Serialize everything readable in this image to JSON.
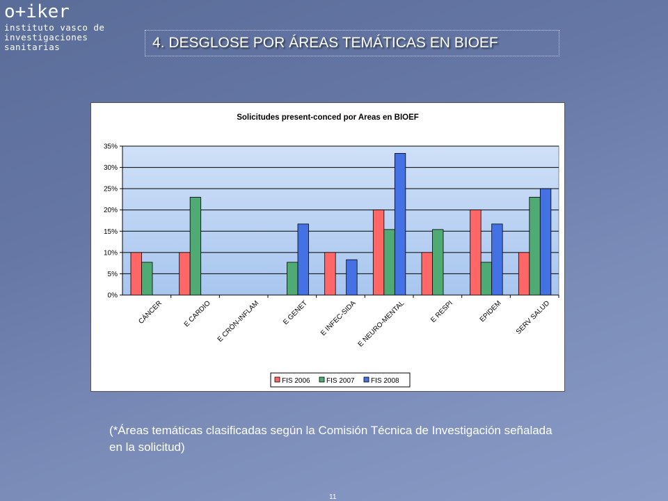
{
  "logo": {
    "main": "o+iker",
    "lines": [
      "instituto vasco de",
      "investigaciones",
      "sanitarias"
    ]
  },
  "slide_title": "4. DESGLOSE POR ÁREAS TEMÁTICAS EN BIOEF",
  "note": "(*Áreas temáticas clasificadas según la Comisión Técnica de Investigación señalada en la solicitud)",
  "page_number": "11",
  "chart_data": {
    "type": "bar",
    "title": "Solicitudes present-conced por Areas en BIOEF",
    "xlabel": "",
    "ylabel": "",
    "ylim": [
      0,
      35
    ],
    "y_ticks": [
      "0%",
      "5%",
      "10%",
      "15%",
      "20%",
      "25%",
      "30%",
      "35%"
    ],
    "grid": true,
    "legend_position": "bottom",
    "categories": [
      "CÁNCER",
      "E CARDIO",
      "E CRÓN-INFLAM",
      "E GENET",
      "E INFEC-SIDA",
      "E NEURO-MENTAL",
      "E RESPI",
      "EPIDEM",
      "SERV SALUD"
    ],
    "series": [
      {
        "name": "FIS 2006",
        "color": "#ff6666",
        "values": [
          10,
          10,
          0,
          0,
          10,
          20,
          10,
          20,
          10
        ]
      },
      {
        "name": "FIS 2007",
        "color": "#4faa73",
        "values": [
          7.7,
          23,
          0,
          7.7,
          0,
          15.4,
          15.4,
          7.7,
          23
        ]
      },
      {
        "name": "FIS 2008",
        "color": "#4472e4",
        "values": [
          0,
          0,
          0,
          16.7,
          8.3,
          33.3,
          0,
          16.7,
          25
        ]
      }
    ]
  }
}
